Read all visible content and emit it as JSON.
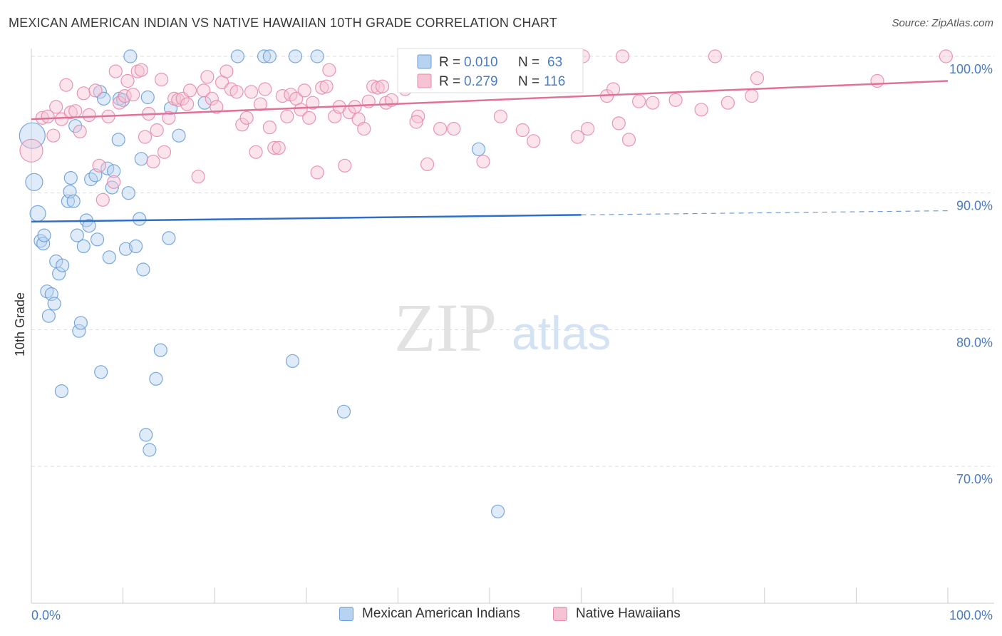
{
  "header": {
    "title": "MEXICAN AMERICAN INDIAN VS NATIVE HAWAIIAN 10TH GRADE CORRELATION CHART",
    "source": "Source: ZipAtlas.com"
  },
  "watermark": {
    "zip": "ZIP",
    "atlas": "atlas"
  },
  "colors": {
    "blue": "#6a9fd8",
    "blue_fill": "#b8d2f1",
    "blue_line": "#2f6fc8",
    "pink": "#e88aaa",
    "pink_fill": "#f6c3d4",
    "pink_line": "#e0719a",
    "axis_text": "#4a7cc4",
    "grid": "#dddddd"
  },
  "legend": {
    "rows": [
      {
        "r_label": "R =",
        "r_value": "0.010",
        "n_label": "N =",
        "n_value": "63"
      },
      {
        "r_label": "R =",
        "r_value": "0.279",
        "n_label": "N =",
        "n_value": "116"
      }
    ]
  },
  "bottom_legend": [
    "Mexican American Indians",
    "Native Hawaiians"
  ],
  "chart_data": {
    "type": "scatter",
    "title": "MEXICAN AMERICAN INDIAN VS NATIVE HAWAIIAN 10TH GRADE CORRELATION CHART",
    "xlabel": "",
    "ylabel": "10th Grade",
    "xlim": [
      0,
      100
    ],
    "ylim": [
      60,
      101.5
    ],
    "x_tick_labels": [
      "0.0%",
      "100.0%"
    ],
    "y_ticks": [
      70,
      80,
      90,
      100
    ],
    "y_tick_labels": [
      "70.0%",
      "80.0%",
      "90.0%",
      "100.0%"
    ],
    "grid": true,
    "series": [
      {
        "name": "Mexican American Indians",
        "color": "blue",
        "R": 0.01,
        "N": 63,
        "trend": {
          "x0": 0,
          "y0": 87.9,
          "x1": 60,
          "y1": 88.4,
          "dash_to": 100,
          "dash_y": 88.7
        },
        "points": [
          [
            0.1,
            94.2,
            18
          ],
          [
            0.3,
            90.8,
            12
          ],
          [
            0.7,
            88.5,
            11
          ],
          [
            1.0,
            86.5,
            9
          ],
          [
            1.3,
            86.3,
            9
          ],
          [
            1.4,
            86.9,
            9
          ],
          [
            1.7,
            82.8,
            9
          ],
          [
            1.9,
            81.0,
            9
          ],
          [
            2.2,
            82.6,
            9
          ],
          [
            2.5,
            81.9,
            9
          ],
          [
            2.7,
            85.0,
            9
          ],
          [
            3.0,
            84.1,
            9
          ],
          [
            3.4,
            84.7,
            9
          ],
          [
            3.3,
            75.5,
            9
          ],
          [
            4.0,
            89.4,
            9
          ],
          [
            4.2,
            90.1,
            9
          ],
          [
            4.3,
            91.1,
            9
          ],
          [
            4.6,
            89.4,
            9
          ],
          [
            4.8,
            94.9,
            9
          ],
          [
            5.0,
            86.9,
            9
          ],
          [
            5.2,
            79.9,
            9
          ],
          [
            5.4,
            80.5,
            9
          ],
          [
            5.7,
            86.1,
            9
          ],
          [
            6.0,
            88.0,
            9
          ],
          [
            6.3,
            87.6,
            9
          ],
          [
            6.5,
            91.0,
            9
          ],
          [
            7.0,
            91.3,
            9
          ],
          [
            7.2,
            86.6,
            9
          ],
          [
            7.5,
            97.4,
            9
          ],
          [
            7.6,
            76.9,
            9
          ],
          [
            7.9,
            96.9,
            9
          ],
          [
            8.3,
            91.8,
            9
          ],
          [
            8.5,
            85.3,
            9
          ],
          [
            8.8,
            90.4,
            9
          ],
          [
            9.0,
            91.6,
            9
          ],
          [
            9.5,
            93.9,
            9
          ],
          [
            9.6,
            96.9,
            9
          ],
          [
            10.0,
            96.8,
            9
          ],
          [
            10.3,
            85.9,
            9
          ],
          [
            10.6,
            90.0,
            9
          ],
          [
            10.8,
            100.0,
            9
          ],
          [
            11.4,
            86.1,
            9
          ],
          [
            11.8,
            88.1,
            9
          ],
          [
            12.0,
            92.5,
            9
          ],
          [
            12.2,
            84.4,
            9
          ],
          [
            12.5,
            72.3,
            9
          ],
          [
            12.7,
            97.0,
            9
          ],
          [
            12.9,
            71.2,
            9
          ],
          [
            13.6,
            76.4,
            9
          ],
          [
            14.1,
            78.5,
            9
          ],
          [
            15.2,
            96.2,
            9
          ],
          [
            15.0,
            86.7,
            9
          ],
          [
            16.1,
            94.2,
            9
          ],
          [
            18.9,
            96.6,
            9
          ],
          [
            22.5,
            100.0,
            9
          ],
          [
            25.4,
            100.0,
            9
          ],
          [
            26.0,
            100.0,
            9
          ],
          [
            28.5,
            77.7,
            9
          ],
          [
            28.8,
            100.0,
            9
          ],
          [
            31.2,
            100.0,
            9
          ],
          [
            34.1,
            74.0,
            9
          ],
          [
            48.8,
            93.2,
            9
          ],
          [
            50.9,
            66.7,
            9
          ]
        ]
      },
      {
        "name": "Native Hawaiians",
        "color": "pink",
        "R": 0.279,
        "N": 116,
        "trend": {
          "x0": 0,
          "y0": 95.4,
          "x1": 100,
          "y1": 98.2
        },
        "points": [
          [
            0.0,
            93.1,
            16
          ],
          [
            1.2,
            95.5,
            9
          ],
          [
            1.8,
            95.6,
            9
          ],
          [
            2.4,
            94.2,
            9
          ],
          [
            2.7,
            96.3,
            9
          ],
          [
            3.3,
            95.4,
            9
          ],
          [
            3.8,
            97.9,
            9
          ],
          [
            4.3,
            95.9,
            9
          ],
          [
            4.8,
            96.0,
            9
          ],
          [
            5.3,
            94.5,
            9
          ],
          [
            5.7,
            97.3,
            9
          ],
          [
            6.3,
            95.7,
            9
          ],
          [
            7.0,
            97.5,
            9
          ],
          [
            7.4,
            92.0,
            9
          ],
          [
            7.8,
            89.5,
            9
          ],
          [
            8.4,
            95.6,
            9
          ],
          [
            9.0,
            90.8,
            9
          ],
          [
            9.2,
            98.9,
            9
          ],
          [
            9.6,
            96.6,
            9
          ],
          [
            10.2,
            97.1,
            9
          ],
          [
            10.5,
            98.2,
            9
          ],
          [
            11.1,
            97.2,
            9
          ],
          [
            11.6,
            98.9,
            9
          ],
          [
            12.0,
            99.0,
            9
          ],
          [
            12.4,
            94.1,
            9
          ],
          [
            12.8,
            95.8,
            9
          ],
          [
            13.3,
            92.3,
            9
          ],
          [
            13.7,
            94.6,
            9
          ],
          [
            14.2,
            98.3,
            9
          ],
          [
            14.5,
            93.0,
            9
          ],
          [
            15.0,
            95.5,
            9
          ],
          [
            15.6,
            96.9,
            9
          ],
          [
            16.0,
            96.8,
            9
          ],
          [
            16.5,
            96.9,
            9
          ],
          [
            17.0,
            96.5,
            9
          ],
          [
            17.3,
            97.5,
            9
          ],
          [
            18.2,
            91.2,
            9
          ],
          [
            18.8,
            97.5,
            9
          ],
          [
            19.2,
            98.5,
            9
          ],
          [
            19.7,
            96.9,
            9
          ],
          [
            20.2,
            96.3,
            9
          ],
          [
            20.8,
            98.1,
            9
          ],
          [
            21.3,
            98.9,
            9
          ],
          [
            21.8,
            97.6,
            9
          ],
          [
            22.4,
            97.4,
            9
          ],
          [
            23.0,
            95.0,
            9
          ],
          [
            23.5,
            95.5,
            9
          ],
          [
            24.0,
            97.4,
            9
          ],
          [
            24.5,
            93.0,
            9
          ],
          [
            25.0,
            96.5,
            9
          ],
          [
            25.5,
            97.6,
            9
          ],
          [
            26.0,
            94.8,
            9
          ],
          [
            26.5,
            93.3,
            9
          ],
          [
            27.0,
            93.3,
            9
          ],
          [
            27.4,
            97.1,
            9
          ],
          [
            27.9,
            95.6,
            9
          ],
          [
            28.3,
            97.2,
            9
          ],
          [
            28.9,
            96.9,
            9
          ],
          [
            29.4,
            96.1,
            9
          ],
          [
            29.8,
            97.5,
            9
          ],
          [
            30.3,
            95.5,
            9
          ],
          [
            30.7,
            96.6,
            9
          ],
          [
            31.2,
            91.5,
            9
          ],
          [
            31.7,
            97.7,
            9
          ],
          [
            32.2,
            97.8,
            9
          ],
          [
            32.5,
            99.0,
            9
          ],
          [
            33.1,
            95.6,
            9
          ],
          [
            33.6,
            96.3,
            9
          ],
          [
            34.2,
            92.0,
            9
          ],
          [
            34.7,
            95.9,
            9
          ],
          [
            35.3,
            96.3,
            9
          ],
          [
            35.7,
            95.4,
            9
          ],
          [
            36.3,
            94.7,
            9
          ],
          [
            36.8,
            96.7,
            9
          ],
          [
            37.3,
            97.8,
            9
          ],
          [
            37.8,
            97.7,
            9
          ],
          [
            38.3,
            97.8,
            9
          ],
          [
            38.7,
            96.6,
            9
          ],
          [
            39.3,
            96.8,
            9
          ],
          [
            40.8,
            97.6,
            9
          ],
          [
            41.3,
            99.9,
            9
          ],
          [
            42.2,
            95.6,
            9
          ],
          [
            42.0,
            95.2,
            9
          ],
          [
            43.2,
            92.1,
            9
          ],
          [
            44.1,
            100.0,
            9
          ],
          [
            44.6,
            94.7,
            9
          ],
          [
            46.1,
            94.7,
            9
          ],
          [
            46.5,
            100.0,
            9
          ],
          [
            48.4,
            100.0,
            9
          ],
          [
            49.3,
            92.3,
            9
          ],
          [
            51.2,
            95.6,
            9
          ],
          [
            52.2,
            100.0,
            9
          ],
          [
            53.6,
            94.6,
            9
          ],
          [
            54.8,
            93.8,
            9
          ],
          [
            56.2,
            100.0,
            9
          ],
          [
            57.3,
            100.0,
            9
          ],
          [
            59.6,
            94.1,
            9
          ],
          [
            60.2,
            100.0,
            9
          ],
          [
            60.7,
            94.7,
            9
          ],
          [
            62.8,
            97.1,
            9
          ],
          [
            63.5,
            97.6,
            9
          ],
          [
            64.1,
            95.1,
            9
          ],
          [
            64.5,
            100.0,
            9
          ],
          [
            65.2,
            93.9,
            9
          ],
          [
            66.3,
            96.7,
            9
          ],
          [
            67.8,
            96.6,
            9
          ],
          [
            70.3,
            96.8,
            9
          ],
          [
            73.1,
            96.1,
            9
          ],
          [
            74.6,
            100.0,
            9
          ],
          [
            76.0,
            96.6,
            9
          ],
          [
            78.6,
            97.1,
            9
          ],
          [
            79.2,
            98.4,
            9
          ],
          [
            92.3,
            98.2,
            9
          ],
          [
            99.8,
            100.0,
            9
          ],
          [
            59.4,
            100.0,
            9
          ],
          [
            50.0,
            100.0,
            9
          ]
        ]
      }
    ]
  }
}
